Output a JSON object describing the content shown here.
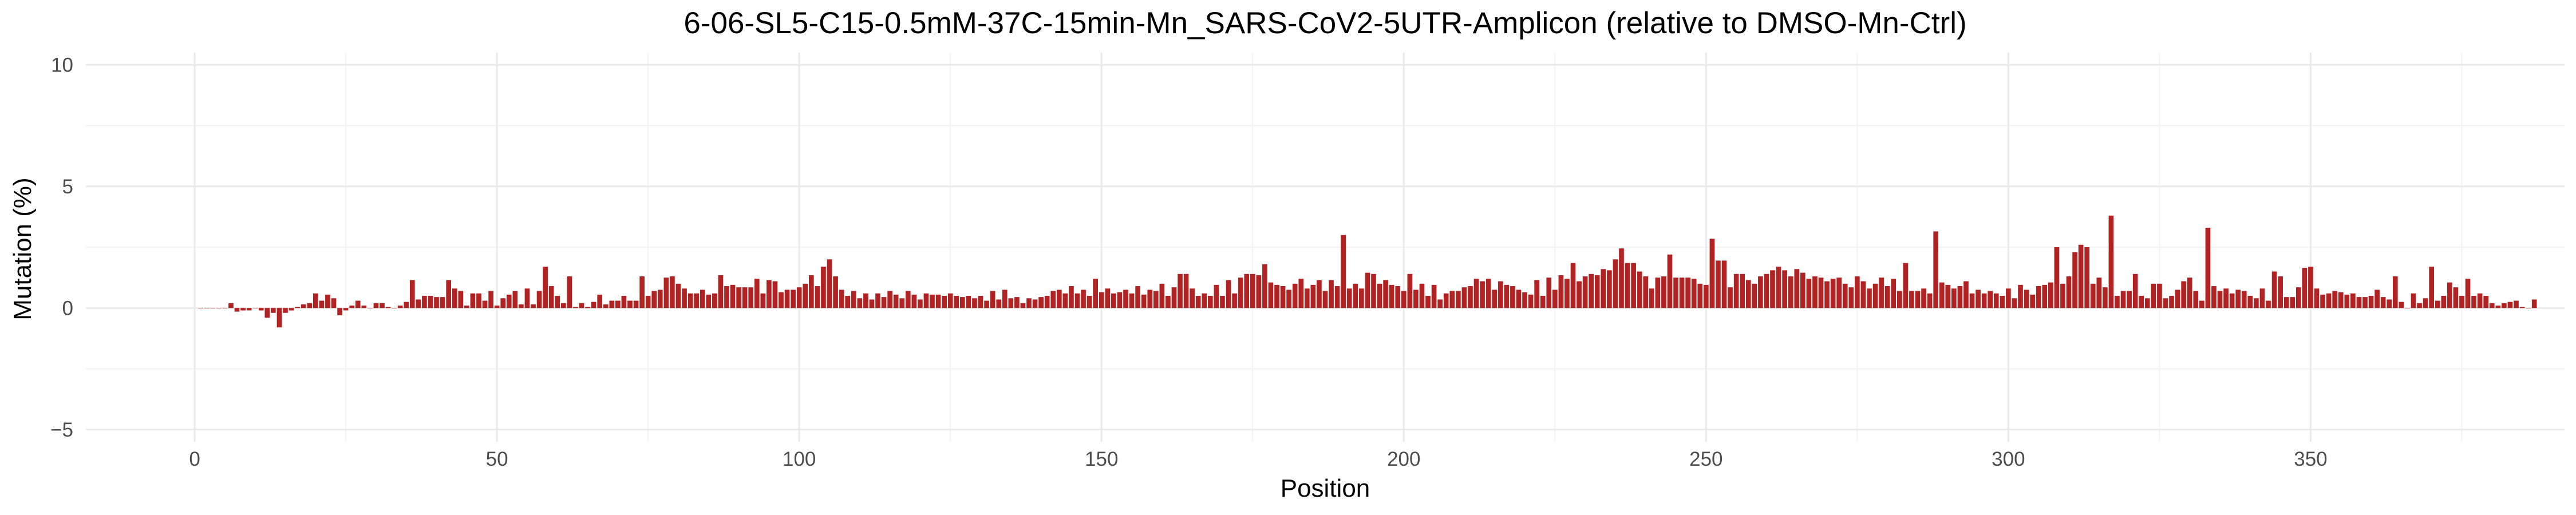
{
  "chart_data": {
    "type": "bar",
    "title": "6-06-SL5-C15-0.5mM-37C-15min-Mn_SARS-CoV2-5UTR-Amplicon (relative to DMSO-Mn-Ctrl)",
    "xlabel": "Position",
    "ylabel": "Mutation (%)",
    "xlim": [
      -18,
      392
    ],
    "ylim": [
      -5.5,
      10.5
    ],
    "xticks": [
      0,
      50,
      100,
      150,
      200,
      250,
      300,
      350
    ],
    "yticks": [
      -5,
      0,
      5,
      10
    ],
    "grid": true,
    "legend": "none",
    "bar_color": "#b22222",
    "positions_start": 1,
    "values": [
      0.0,
      0.0,
      0.0,
      0.0,
      0.0,
      0.2,
      -0.15,
      -0.1,
      -0.1,
      0.0,
      -0.1,
      -0.4,
      -0.2,
      -0.8,
      -0.2,
      -0.1,
      0.05,
      0.15,
      0.2,
      0.6,
      0.3,
      0.55,
      0.4,
      -0.3,
      -0.1,
      0.1,
      0.3,
      0.1,
      0.0,
      0.2,
      0.2,
      0.05,
      0.0,
      0.1,
      0.25,
      1.15,
      0.35,
      0.5,
      0.5,
      0.45,
      0.45,
      1.15,
      0.8,
      0.7,
      0.1,
      0.6,
      0.6,
      0.3,
      0.7,
      0.1,
      0.4,
      0.55,
      0.7,
      0.15,
      0.8,
      0.15,
      0.7,
      1.7,
      0.9,
      0.5,
      0.2,
      1.3,
      0.05,
      0.2,
      0.05,
      0.25,
      0.55,
      0.15,
      0.3,
      0.3,
      0.5,
      0.3,
      0.3,
      1.3,
      0.5,
      0.7,
      0.75,
      1.25,
      1.3,
      1.0,
      0.8,
      0.6,
      0.6,
      0.75,
      0.55,
      0.6,
      1.35,
      0.9,
      0.95,
      0.85,
      0.85,
      0.85,
      1.2,
      0.6,
      1.15,
      1.1,
      0.65,
      0.75,
      0.75,
      0.85,
      1.0,
      1.35,
      0.9,
      1.7,
      2.0,
      1.3,
      0.75,
      0.5,
      0.7,
      0.4,
      0.6,
      0.35,
      0.6,
      0.45,
      0.7,
      0.55,
      0.4,
      0.7,
      0.55,
      0.35,
      0.6,
      0.55,
      0.55,
      0.5,
      0.6,
      0.5,
      0.45,
      0.5,
      0.4,
      0.5,
      0.3,
      0.7,
      0.35,
      0.75,
      0.4,
      0.45,
      0.2,
      0.4,
      0.35,
      0.45,
      0.5,
      0.7,
      0.75,
      0.6,
      0.9,
      0.6,
      0.75,
      0.5,
      1.2,
      0.65,
      0.8,
      0.6,
      0.65,
      0.75,
      0.6,
      0.9,
      0.55,
      0.75,
      0.7,
      1.0,
      0.5,
      0.85,
      1.4,
      1.4,
      0.8,
      0.5,
      0.6,
      0.5,
      0.95,
      0.5,
      1.15,
      0.6,
      1.25,
      1.4,
      1.4,
      1.35,
      1.8,
      1.05,
      0.95,
      0.9,
      0.75,
      1.0,
      1.2,
      0.8,
      0.95,
      1.15,
      0.7,
      1.15,
      0.9,
      3.0,
      0.8,
      1.0,
      0.8,
      1.45,
      1.4,
      1.0,
      1.15,
      0.95,
      0.9,
      0.7,
      1.4,
      0.75,
      1.0,
      0.5,
      0.95,
      0.35,
      0.6,
      0.7,
      0.7,
      0.85,
      0.9,
      1.2,
      1.1,
      1.2,
      0.75,
      1.1,
      0.95,
      0.9,
      0.75,
      0.65,
      0.55,
      1.15,
      0.5,
      1.25,
      0.75,
      1.35,
      1.2,
      1.85,
      1.1,
      1.3,
      1.4,
      1.35,
      1.6,
      1.55,
      2.0,
      2.45,
      1.85,
      1.85,
      1.5,
      1.3,
      0.8,
      1.25,
      1.3,
      2.2,
      1.25,
      1.25,
      1.25,
      1.2,
      1.0,
      0.95,
      2.85,
      1.95,
      1.95,
      0.85,
      1.4,
      1.4,
      1.15,
      1.0,
      1.3,
      1.4,
      1.55,
      1.7,
      1.55,
      1.3,
      1.6,
      1.45,
      1.2,
      1.3,
      1.25,
      1.1,
      1.2,
      1.25,
      1.0,
      0.85,
      1.3,
      1.1,
      0.8,
      1.0,
      1.25,
      0.9,
      1.2,
      0.7,
      1.85,
      0.7,
      0.7,
      0.8,
      0.6,
      3.15,
      1.05,
      0.95,
      0.8,
      0.9,
      1.1,
      0.6,
      0.75,
      0.6,
      0.7,
      0.6,
      0.5,
      0.8,
      0.4,
      0.95,
      0.75,
      0.55,
      0.9,
      0.95,
      1.05,
      2.5,
      1.0,
      1.3,
      2.3,
      2.6,
      2.5,
      1.0,
      1.25,
      0.85,
      3.8,
      0.5,
      0.7,
      0.7,
      1.4,
      0.5,
      0.4,
      1.0,
      1.0,
      0.4,
      0.5,
      0.75,
      1.1,
      1.25,
      0.7,
      0.3,
      3.3,
      0.9,
      0.7,
      0.8,
      0.6,
      0.75,
      0.7,
      0.5,
      0.4,
      0.8,
      0.3,
      1.5,
      1.3,
      0.45,
      0.45,
      0.85,
      1.65,
      1.7,
      0.8,
      0.55,
      0.6,
      0.7,
      0.65,
      0.55,
      0.6,
      0.45,
      0.45,
      0.5,
      0.75,
      0.45,
      0.35,
      1.3,
      0.25,
      0.0,
      0.6,
      0.2,
      0.4,
      1.7,
      0.3,
      0.5,
      1.05,
      0.85,
      0.5,
      1.2,
      0.5,
      0.6,
      0.5,
      0.2,
      0.1,
      0.2,
      0.25,
      0.3,
      0.05,
      0.0,
      0.35
    ]
  }
}
